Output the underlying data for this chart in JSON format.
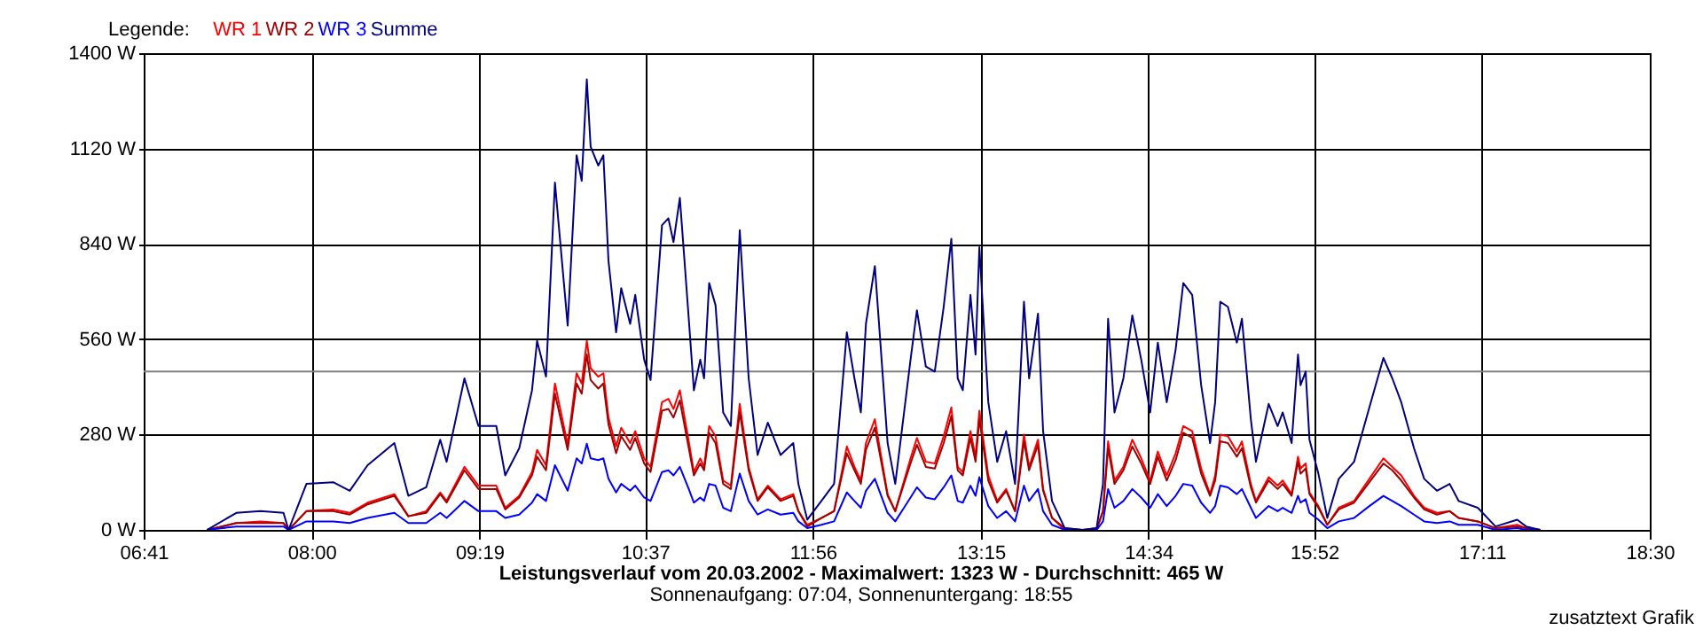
{
  "chart_data": {
    "type": "line",
    "title": "Leistungsverlauf vom 20.03.2002 - Maximalwert: 1323 W - Durchschnitt: 465 W",
    "subtitle": "Sonnenaufgang: 07:04, Sonnenuntergang: 18:55",
    "legend_title": "Legende:",
    "annotations": [
      "zusatztext Grafik"
    ],
    "x": [
      7.18,
      7.41,
      7.6,
      7.78,
      7.82,
      7.96,
      8.17,
      8.3,
      8.44,
      8.65,
      8.76,
      8.9,
      9.01,
      9.06,
      9.2,
      9.31,
      9.45,
      9.52,
      9.63,
      9.73,
      9.77,
      9.84,
      9.91,
      10.01,
      10.08,
      10.12,
      10.16,
      10.19,
      10.25,
      10.29,
      10.33,
      10.39,
      10.43,
      10.5,
      10.54,
      10.61,
      10.66,
      10.75,
      10.8,
      10.84,
      10.89,
      10.96,
      11.0,
      11.05,
      11.08,
      11.12,
      11.17,
      11.23,
      11.29,
      11.36,
      11.43,
      11.5,
      11.58,
      11.68,
      11.78,
      11.82,
      11.89,
      12.0,
      12.1,
      12.2,
      12.26,
      12.31,
      12.35,
      12.42,
      12.52,
      12.58,
      12.7,
      12.75,
      12.82,
      12.89,
      12.96,
      13.02,
      13.07,
      13.11,
      13.17,
      13.21,
      13.24,
      13.31,
      13.38,
      13.45,
      13.52,
      13.59,
      13.63,
      13.7,
      13.74,
      13.81,
      13.91,
      14.05,
      14.16,
      14.21,
      14.25,
      14.3,
      14.37,
      14.44,
      14.51,
      14.58,
      14.64,
      14.71,
      14.78,
      14.84,
      14.91,
      14.98,
      15.05,
      15.09,
      15.13,
      15.19,
      15.26,
      15.3,
      15.37,
      15.41,
      15.51,
      15.58,
      15.62,
      15.69,
      15.74,
      15.76,
      15.8,
      15.83,
      15.9,
      15.97,
      16.06,
      16.18,
      16.3,
      16.41,
      16.48,
      16.55,
      16.65,
      16.73,
      16.83,
      16.93,
      17.0,
      17.15,
      17.29,
      17.46,
      17.53,
      17.64
    ],
    "series": [
      {
        "name": "WR 1",
        "color": "#ff0000",
        "values": [
          0,
          20,
          25,
          20,
          0,
          55,
          60,
          50,
          80,
          105,
          40,
          55,
          110,
          85,
          185,
          130,
          130,
          65,
          100,
          170,
          235,
          190,
          430,
          250,
          460,
          430,
          555,
          475,
          450,
          460,
          330,
          245,
          300,
          255,
          290,
          210,
          185,
          375,
          385,
          355,
          410,
          260,
          170,
          210,
          185,
          305,
          275,
          145,
          130,
          370,
          185,
          90,
          130,
          90,
          105,
          55,
          15,
          35,
          55,
          245,
          185,
          145,
          255,
          325,
          105,
          55,
          210,
          270,
          200,
          195,
          275,
          360,
          185,
          170,
          290,
          215,
          350,
          160,
          85,
          120,
          55,
          280,
          185,
          265,
          120,
          35,
          0,
          0,
          0,
          55,
          260,
          145,
          185,
          265,
          210,
          145,
          230,
          160,
          225,
          305,
          290,
          180,
          105,
          160,
          280,
          275,
          230,
          260,
          135,
          85,
          155,
          130,
          145,
          105,
          215,
          180,
          195,
          110,
          70,
          15,
          65,
          85,
          150,
          210,
          185,
          160,
          100,
          65,
          50,
          55,
          35,
          25,
          5,
          15,
          5,
          0
        ]
      },
      {
        "name": "WR 2",
        "color": "#a00000",
        "values": [
          0,
          20,
          20,
          20,
          0,
          55,
          55,
          45,
          75,
          100,
          40,
          50,
          105,
          80,
          175,
          120,
          120,
          60,
          95,
          160,
          215,
          175,
          400,
          235,
          430,
          400,
          515,
          440,
          415,
          430,
          310,
          225,
          275,
          235,
          270,
          195,
          170,
          350,
          355,
          330,
          380,
          240,
          160,
          195,
          175,
          285,
          255,
          135,
          120,
          345,
          175,
          85,
          125,
          85,
          100,
          55,
          10,
          35,
          55,
          225,
          175,
          135,
          235,
          300,
          100,
          55,
          195,
          250,
          185,
          180,
          255,
          335,
          175,
          160,
          270,
          200,
          325,
          145,
          80,
          115,
          55,
          260,
          175,
          250,
          115,
          35,
          5,
          0,
          5,
          55,
          240,
          135,
          175,
          245,
          195,
          135,
          215,
          145,
          205,
          285,
          270,
          165,
          100,
          145,
          260,
          255,
          215,
          240,
          125,
          80,
          145,
          120,
          135,
          100,
          200,
          165,
          180,
          105,
          65,
          15,
          60,
          80,
          140,
          195,
          175,
          145,
          95,
          60,
          45,
          55,
          35,
          25,
          5,
          10,
          5,
          0
        ]
      },
      {
        "name": "WR 3",
        "color": "#0000ff",
        "values": [
          0,
          10,
          10,
          10,
          0,
          25,
          25,
          20,
          35,
          50,
          20,
          20,
          50,
          35,
          85,
          55,
          55,
          35,
          45,
          80,
          105,
          85,
          190,
          115,
          210,
          195,
          253,
          210,
          205,
          210,
          150,
          110,
          135,
          115,
          130,
          95,
          85,
          170,
          175,
          160,
          185,
          120,
          80,
          95,
          85,
          135,
          130,
          65,
          55,
          165,
          85,
          45,
          60,
          45,
          50,
          25,
          5,
          15,
          25,
          110,
          85,
          65,
          115,
          150,
          50,
          25,
          95,
          125,
          95,
          90,
          125,
          160,
          85,
          80,
          130,
          100,
          155,
          70,
          35,
          55,
          25,
          130,
          85,
          120,
          55,
          15,
          0,
          0,
          0,
          25,
          120,
          65,
          85,
          120,
          95,
          65,
          105,
          70,
          100,
          135,
          130,
          80,
          50,
          70,
          130,
          125,
          105,
          120,
          65,
          35,
          70,
          55,
          65,
          50,
          100,
          80,
          90,
          50,
          30,
          5,
          25,
          35,
          70,
          100,
          85,
          70,
          45,
          25,
          20,
          25,
          15,
          15,
          0,
          5,
          0,
          0
        ]
      },
      {
        "name": "Summe",
        "color": "#000080",
        "values": [
          0,
          50,
          55,
          50,
          0,
          135,
          140,
          115,
          190,
          255,
          100,
          125,
          265,
          200,
          445,
          305,
          305,
          160,
          240,
          410,
          555,
          450,
          1020,
          600,
          1100,
          1025,
          1323,
          1125,
          1070,
          1100,
          790,
          580,
          710,
          605,
          690,
          500,
          440,
          895,
          915,
          845,
          975,
          620,
          410,
          500,
          445,
          725,
          660,
          345,
          305,
          880,
          445,
          220,
          315,
          220,
          255,
          135,
          30,
          85,
          135,
          580,
          445,
          345,
          605,
          775,
          255,
          135,
          500,
          645,
          480,
          465,
          655,
          855,
          445,
          410,
          690,
          515,
          830,
          375,
          200,
          290,
          135,
          670,
          445,
          635,
          290,
          85,
          5,
          0,
          5,
          135,
          620,
          345,
          445,
          630,
          500,
          345,
          550,
          375,
          530,
          725,
          690,
          425,
          255,
          375,
          670,
          655,
          550,
          620,
          325,
          200,
          370,
          305,
          345,
          255,
          515,
          425,
          465,
          265,
          165,
          35,
          150,
          200,
          360,
          505,
          445,
          375,
          240,
          150,
          115,
          135,
          85,
          65,
          10,
          30,
          10,
          0
        ]
      }
    ],
    "xlim": [
      6.6833,
      18.5
    ],
    "xticks": [
      {
        "value": 6.6833,
        "label": "06:41"
      },
      {
        "value": 8.0,
        "label": "08:00"
      },
      {
        "value": 9.3167,
        "label": "09:19"
      },
      {
        "value": 10.6167,
        "label": "10:37"
      },
      {
        "value": 11.9333,
        "label": "11:56"
      },
      {
        "value": 13.25,
        "label": "13:15"
      },
      {
        "value": 14.5667,
        "label": "14:34"
      },
      {
        "value": 15.8667,
        "label": "15:52"
      },
      {
        "value": 17.1833,
        "label": "17:11"
      },
      {
        "value": 18.5,
        "label": "18:30"
      }
    ],
    "ylim": [
      0,
      1400
    ],
    "yticks": [
      {
        "value": 0,
        "label": "0 W"
      },
      {
        "value": 280,
        "label": "280 W"
      },
      {
        "value": 560,
        "label": "560 W"
      },
      {
        "value": 840,
        "label": "840 W"
      },
      {
        "value": 1120,
        "label": "1120 W"
      },
      {
        "value": 1400,
        "label": "1400 W"
      }
    ],
    "ref_lines": [
      {
        "axis": "y",
        "value": 465,
        "color": "#808080"
      }
    ],
    "grid": true,
    "legend": "top left",
    "marker": "none",
    "line_style": "solid"
  }
}
